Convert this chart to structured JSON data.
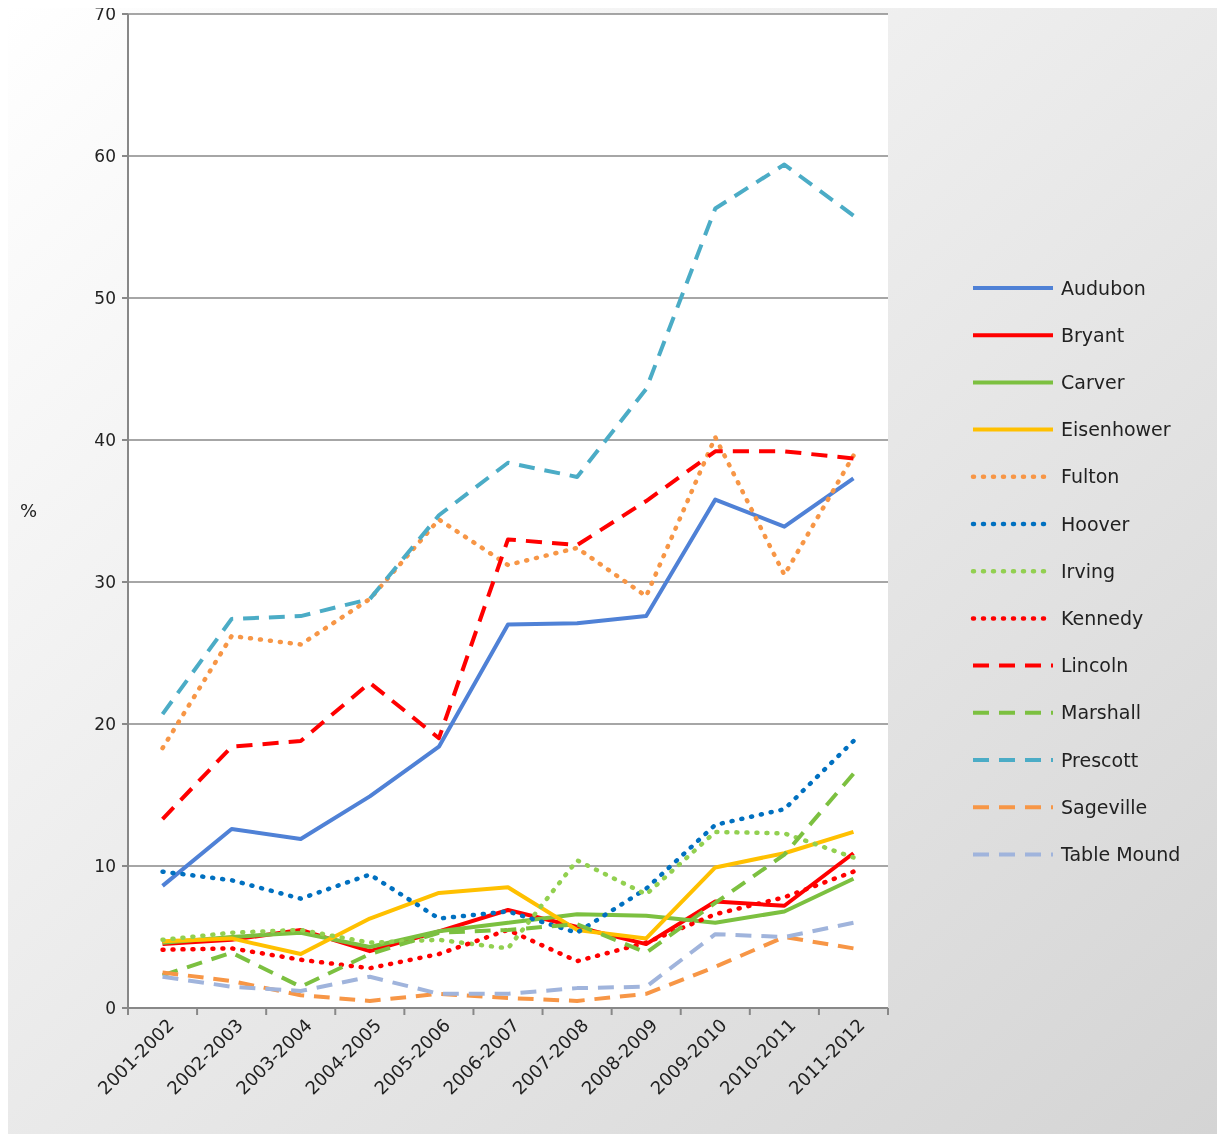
{
  "chart_data": {
    "type": "line",
    "ylabel": "%",
    "categories": [
      "2001-2002",
      "2002-2003",
      "2003-2004",
      "2004-2005",
      "2005-2006",
      "2006-2007",
      "2007-2008",
      "2008-2009",
      "2009-2010",
      "2010-2011",
      "2011-2012"
    ],
    "ylim": [
      0,
      70
    ],
    "yticks": [
      0,
      10,
      20,
      30,
      40,
      50,
      60,
      70
    ],
    "grid": "y",
    "legend": "right",
    "marker": "none",
    "series": [
      {
        "name": "Audubon",
        "color": "#4f81d6",
        "line_style": "solid",
        "values": [
          8.6,
          12.6,
          11.9,
          14.9,
          18.4,
          27.0,
          27.1,
          27.6,
          35.8,
          33.9,
          37.3
        ]
      },
      {
        "name": "Bryant",
        "color": "#ff0000",
        "line_style": "solid",
        "values": [
          4.5,
          4.8,
          5.5,
          4.0,
          5.4,
          6.9,
          5.7,
          4.5,
          7.5,
          7.2,
          10.9
        ]
      },
      {
        "name": "Carver",
        "color": "#7cc040",
        "line_style": "solid",
        "values": [
          4.6,
          5.0,
          5.3,
          4.3,
          5.4,
          6.0,
          6.6,
          6.5,
          6.0,
          6.8,
          9.1
        ]
      },
      {
        "name": "Eisenhower",
        "color": "#ffc000",
        "line_style": "solid",
        "values": [
          4.7,
          4.9,
          3.8,
          6.3,
          8.1,
          8.5,
          5.5,
          4.9,
          9.9,
          10.9,
          12.4
        ]
      },
      {
        "name": "Fulton",
        "color": "#f79646",
        "line_style": "dotted",
        "values": [
          18.3,
          26.2,
          25.6,
          28.8,
          34.4,
          31.2,
          32.4,
          29.0,
          40.2,
          30.5,
          38.9
        ]
      },
      {
        "name": "Hoover",
        "color": "#0070c0",
        "line_style": "dotted",
        "values": [
          9.6,
          9.0,
          7.7,
          9.4,
          6.3,
          6.8,
          5.3,
          8.4,
          12.9,
          14.0,
          18.8
        ]
      },
      {
        "name": "Irving",
        "color": "#92d050",
        "line_style": "dotted",
        "values": [
          4.8,
          5.3,
          5.5,
          4.6,
          4.8,
          4.2,
          10.4,
          8.0,
          12.4,
          12.3,
          10.6
        ]
      },
      {
        "name": "Kennedy",
        "color": "#ff0000",
        "line_style": "dotted",
        "values": [
          4.1,
          4.2,
          3.4,
          2.8,
          3.8,
          5.5,
          3.3,
          4.6,
          6.6,
          7.8,
          9.6
        ]
      },
      {
        "name": "Lincoln",
        "color": "#ff0000",
        "line_style": "dashed",
        "values": [
          13.3,
          18.4,
          18.8,
          22.9,
          19.0,
          33.0,
          32.6,
          35.7,
          39.2,
          39.2,
          38.7
        ]
      },
      {
        "name": "Marshall",
        "color": "#7cc040",
        "line_style": "dashed",
        "values": [
          2.3,
          3.9,
          1.5,
          3.8,
          5.3,
          5.5,
          5.9,
          3.9,
          7.4,
          10.8,
          16.5
        ]
      },
      {
        "name": "Prescott",
        "color": "#4bacc6",
        "line_style": "dashed",
        "values": [
          20.7,
          27.4,
          27.6,
          28.8,
          34.7,
          38.4,
          37.4,
          43.6,
          56.3,
          59.4,
          55.8
        ]
      },
      {
        "name": "Sageville",
        "color": "#f79646",
        "line_style": "dashed",
        "values": [
          2.5,
          1.9,
          0.9,
          0.5,
          1.0,
          0.7,
          0.5,
          1.0,
          2.9,
          5.0,
          4.2
        ]
      },
      {
        "name": "Table Mound",
        "color": "#a0b4dc",
        "line_style": "dashed",
        "values": [
          2.2,
          1.5,
          1.2,
          2.2,
          1.0,
          1.0,
          1.4,
          1.5,
          5.2,
          5.0,
          6.0
        ]
      }
    ]
  }
}
